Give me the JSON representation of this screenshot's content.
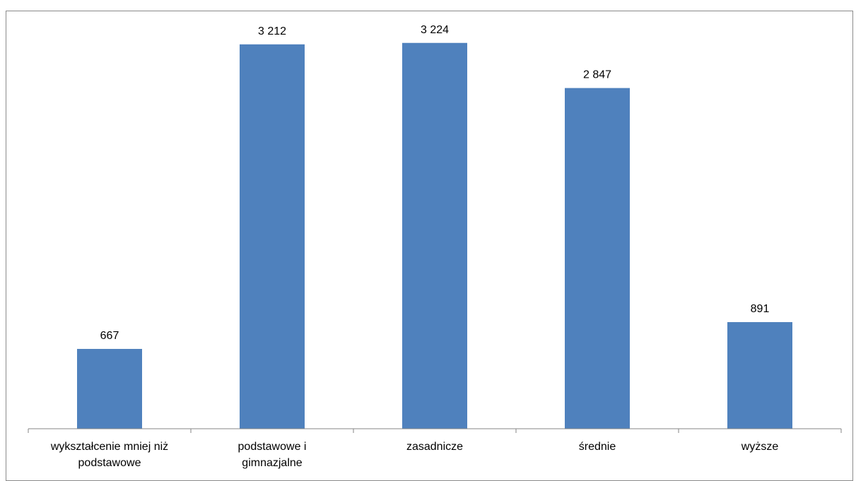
{
  "chart_data": {
    "type": "bar",
    "categories": [
      [
        "wykształcenie mniej niż",
        "podstawowe"
      ],
      [
        "podstawowe i",
        "gimnazjalne"
      ],
      [
        "zasadnicze"
      ],
      [
        "średnie"
      ],
      [
        "wyższe"
      ]
    ],
    "values": [
      667,
      3212,
      3224,
      2847,
      891
    ],
    "value_labels": [
      "667",
      "3 212",
      "3 224",
      "2 847",
      "891"
    ],
    "title": "",
    "xlabel": "",
    "ylabel": "",
    "ylim": [
      0,
      3500
    ],
    "grid": false,
    "legend": "none",
    "bar_color": "#4f81bd",
    "axis_color": "#868686"
  }
}
